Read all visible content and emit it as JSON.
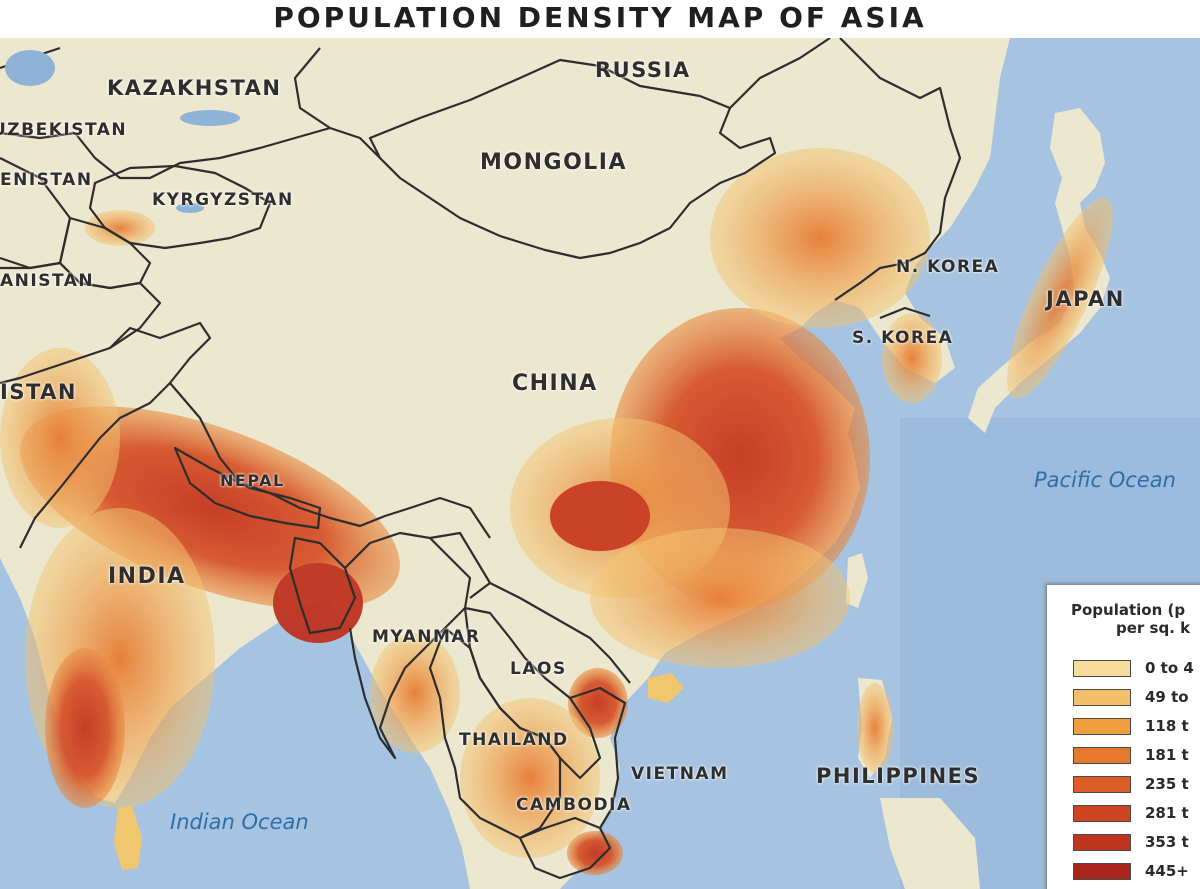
{
  "title": "POPULATION DENSITY MAP OF ASIA",
  "countries": [
    {
      "id": "kazakhstan",
      "label": "KAZAKHSTAN"
    },
    {
      "id": "russia",
      "label": "RUSSIA"
    },
    {
      "id": "mongolia",
      "label": "MONGOLIA"
    },
    {
      "id": "uzbekistan",
      "label": "UZBEKISTAN"
    },
    {
      "id": "turkmenistan",
      "label": "ENISTAN"
    },
    {
      "id": "kyrgyzstan",
      "label": "KYRGYZSTAN"
    },
    {
      "id": "afghanistan",
      "label": "ANISTAN"
    },
    {
      "id": "pakistan",
      "label": "ISTAN"
    },
    {
      "id": "china",
      "label": "CHINA"
    },
    {
      "id": "north-korea",
      "label": "N. KOREA"
    },
    {
      "id": "south-korea",
      "label": "S. KOREA"
    },
    {
      "id": "japan",
      "label": "JAPAN"
    },
    {
      "id": "nepal",
      "label": "NEPAL"
    },
    {
      "id": "india",
      "label": "INDIA"
    },
    {
      "id": "myanmar",
      "label": "MYANMAR"
    },
    {
      "id": "laos",
      "label": "LAOS"
    },
    {
      "id": "thailand",
      "label": "THAILAND"
    },
    {
      "id": "vietnam",
      "label": "VIETNAM"
    },
    {
      "id": "cambodia",
      "label": "CAMBODIA"
    },
    {
      "id": "philippines",
      "label": "PHILIPPINES"
    }
  ],
  "oceans": [
    {
      "id": "pacific",
      "label": "Pacific Ocean"
    },
    {
      "id": "indian",
      "label": "Indian Ocean"
    }
  ],
  "legend": {
    "title_line1": "Population (p",
    "title_line2": "per sq. k",
    "items": [
      {
        "label": "0 to 4",
        "color": "#f6dc9a"
      },
      {
        "label": "49 to",
        "color": "#f3bf68"
      },
      {
        "label": "118 t",
        "color": "#ee9d3f"
      },
      {
        "label": "181 t",
        "color": "#e7792c"
      },
      {
        "label": "235 t",
        "color": "#dc5c26"
      },
      {
        "label": "281 t",
        "color": "#cf4522"
      },
      {
        "label": "353 t",
        "color": "#c0351f"
      },
      {
        "label": "445+",
        "color": "#a9241b"
      }
    ]
  },
  "colors": {
    "ocean": "#a9c6e3",
    "land_low": "#ece8cf",
    "land_mid": "#f2c66d",
    "land_high": "#e57a33",
    "land_dense": "#c9381f",
    "border": "#2d2d2d",
    "ocean_text": "#2f6fa8"
  }
}
